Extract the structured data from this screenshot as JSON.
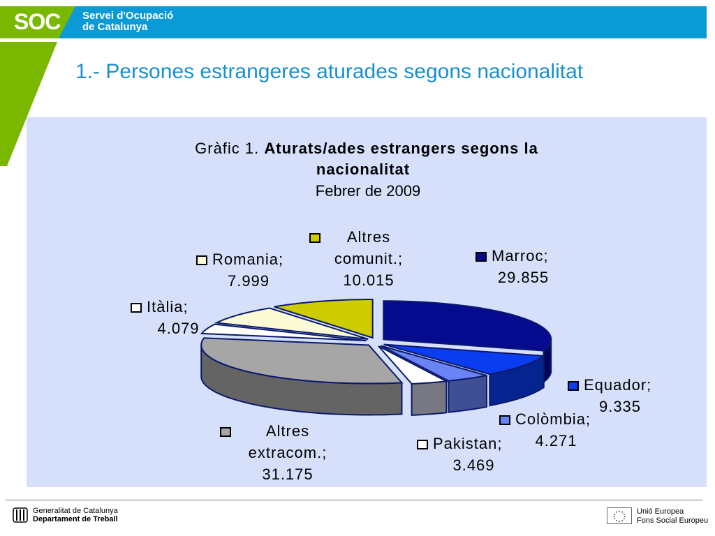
{
  "header": {
    "logo": "SOC",
    "org_line1": "Servei d'Ocupació",
    "org_line2": "de Catalunya",
    "bar_color": "#0a9ad6",
    "accent_color": "#7ab800"
  },
  "page": {
    "title": "1.- Persones estrangeres aturades segons nacionalitat"
  },
  "chart_data": {
    "type": "pie",
    "title_prefix": "Gràfic 1. ",
    "title_bold_line1": "Aturats/ades estrangers segons la",
    "title_bold_line2": "nacionalitat",
    "subtitle": "Febrer de 2009",
    "series": [
      {
        "name": "Marroc",
        "value": 29.855,
        "value_label": "29.855",
        "color": "#050a8f",
        "label_line1": "Marroc;",
        "label_line2": "29.855"
      },
      {
        "name": "Equador",
        "value": 9.335,
        "value_label": "9.335",
        "color": "#0a3cf0",
        "label_line1": "Equador;",
        "label_line2": "9.335"
      },
      {
        "name": "Colòmbia",
        "value": 4.271,
        "value_label": "4.271",
        "color": "#6b84f5",
        "label_line1": "Colòmbia;",
        "label_line2": "4.271"
      },
      {
        "name": "Pakistan",
        "value": 3.469,
        "value_label": "3.469",
        "color": "#ffffff",
        "label_line1": "Pakistan;",
        "label_line2": "3.469"
      },
      {
        "name": "Altres extracom.",
        "value": 31.175,
        "value_label": "31.175",
        "color": "#a6a6a6",
        "label_line1": "Altres",
        "label_line2": "extracom.;",
        "label_line3": "31.175"
      },
      {
        "name": "Itàlia",
        "value": 4.079,
        "value_label": "4.079",
        "color": "#ffffff",
        "label_line1": "Itàlia;",
        "label_line2": "4.079"
      },
      {
        "name": "Romania",
        "value": 7.999,
        "value_label": "7.999",
        "color": "#fbfbd6",
        "label_line1": "Romania;",
        "label_line2": "7.999"
      },
      {
        "name": "Altres comunit.",
        "value": 10.015,
        "value_label": "10.015",
        "color": "#cccc00",
        "label_line1": "Altres",
        "label_line2": "comunit.;",
        "label_line3": "10.015"
      }
    ],
    "style": "3d-exploded-pie"
  },
  "footer": {
    "left_line1": "Generalitat de Catalunya",
    "left_line2": "Departament de Treball",
    "right_line1": "Unió Europea",
    "right_line2": "Fons Social Europeu"
  }
}
